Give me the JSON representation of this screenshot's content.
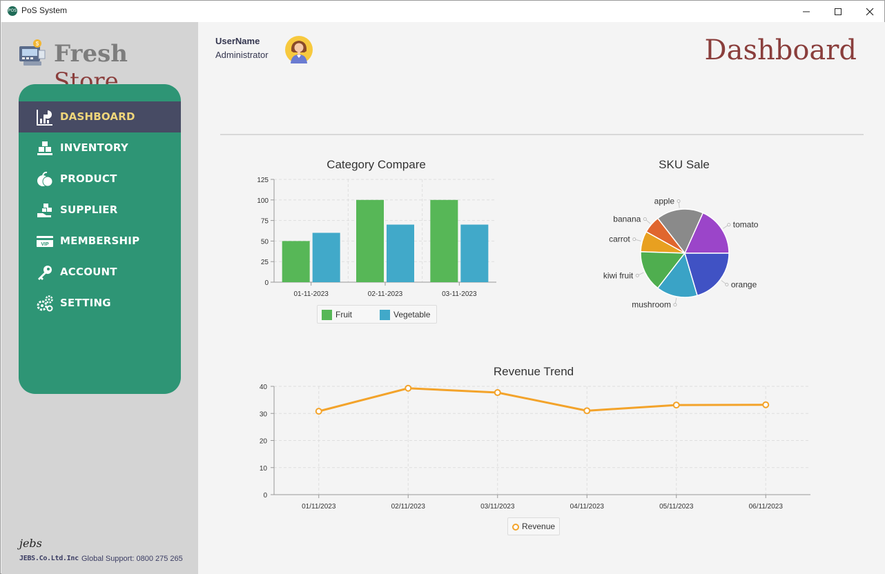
{
  "window": {
    "title": "PoS System",
    "app_icon_text": "POS"
  },
  "brand": {
    "word1": "Fresh",
    "word2": "Store"
  },
  "user": {
    "name": "UserName",
    "role": "Administrator"
  },
  "page_title": "Dashboard",
  "menu": [
    {
      "label": "DASHBOARD",
      "icon": "dashboard-icon",
      "active": true
    },
    {
      "label": "INVENTORY",
      "icon": "inventory-icon",
      "active": false
    },
    {
      "label": "PRODUCT",
      "icon": "product-icon",
      "active": false
    },
    {
      "label": "SUPPLIER",
      "icon": "supplier-icon",
      "active": false
    },
    {
      "label": "MEMBERSHIP",
      "icon": "vip-card-icon",
      "active": false
    },
    {
      "label": "ACCOUNT",
      "icon": "key-icon",
      "active": false
    },
    {
      "label": "SETTING",
      "icon": "gears-icon",
      "active": false
    }
  ],
  "footer": {
    "logo": "jebs",
    "company": "JEBS.Co.Ltd.Inc",
    "support": "Global Support: 0800 275 265"
  },
  "colors": {
    "menu_bg": "#2e9575",
    "menu_active": "#474b64",
    "menu_active_text": "#f0d67a",
    "title_red": "#8a3e3c",
    "fruit": "#57b757",
    "vegetable": "#41a9c9",
    "revenue": "#f3a32a"
  },
  "chart_data": [
    {
      "type": "bar",
      "title": "Category Compare",
      "categories": [
        "01-11-2023",
        "02-11-2023",
        "03-11-2023"
      ],
      "series": [
        {
          "name": "Fruit",
          "values": [
            50,
            100,
            100
          ],
          "color": "#57b757"
        },
        {
          "name": "Vegetable",
          "values": [
            60,
            70,
            70
          ],
          "color": "#41a9c9"
        }
      ],
      "ylim": [
        0,
        125
      ],
      "yticks": [
        0,
        25,
        50,
        75,
        100,
        125
      ],
      "grid": true,
      "legend": "bottom"
    },
    {
      "type": "pie",
      "title": "SKU Sale",
      "slices": [
        {
          "label": "tomato",
          "value": 17,
          "color": "#9b45c9"
        },
        {
          "label": "apple",
          "value": 16,
          "color": "#8a8a8a"
        },
        {
          "label": "banana",
          "value": 6,
          "color": "#e0662e"
        },
        {
          "label": "carrot",
          "value": 7,
          "color": "#e8a020"
        },
        {
          "label": "kiwi fruit",
          "value": 14,
          "color": "#4fae4f"
        },
        {
          "label": "mushroom",
          "value": 14,
          "color": "#3aa3c6"
        },
        {
          "label": "orange",
          "value": 19,
          "color": "#4052c4"
        }
      ],
      "legend": "none"
    },
    {
      "type": "line",
      "title": "Revenue Trend",
      "categories": [
        "01/11/2023",
        "02/11/2023",
        "03/11/2023",
        "04/11/2023",
        "05/11/2023",
        "06/11/2023"
      ],
      "series": [
        {
          "name": "Revenue",
          "values": [
            30.8,
            39.3,
            37.7,
            31.0,
            33.1,
            33.2
          ],
          "color": "#f3a32a"
        }
      ],
      "ylim": [
        0,
        40
      ],
      "yticks": [
        0,
        10,
        20,
        30,
        40
      ],
      "grid": true,
      "legend": "bottom"
    }
  ]
}
